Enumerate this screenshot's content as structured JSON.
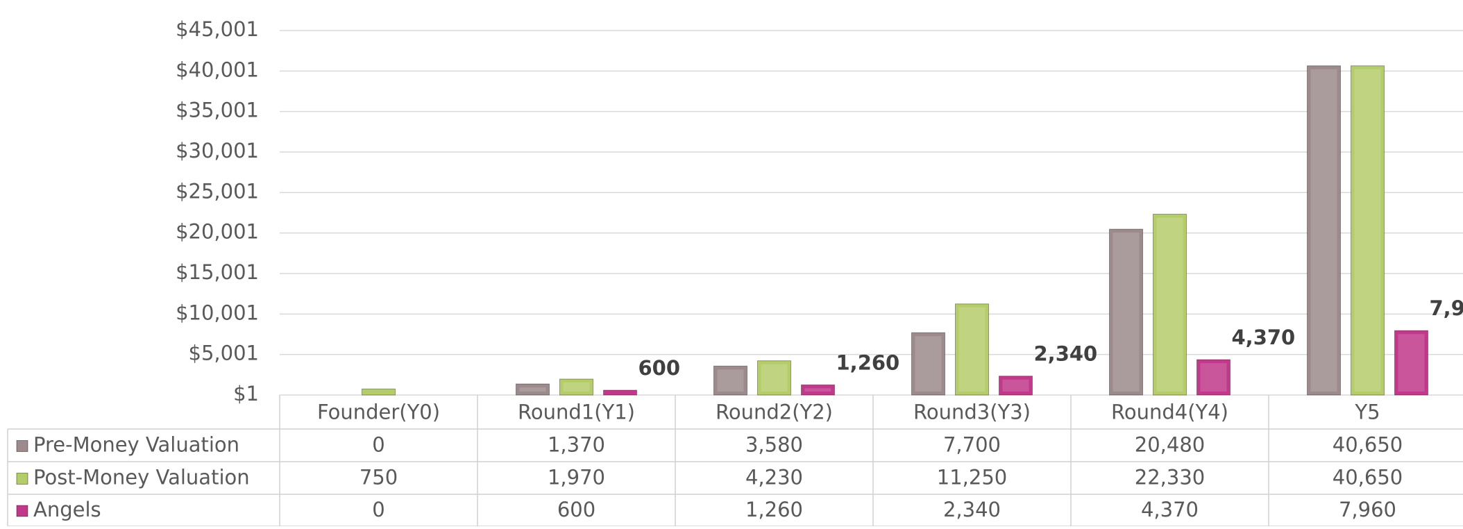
{
  "chart_data": {
    "type": "bar",
    "categories": [
      "Founder(Y0)",
      "Round1(Y1)",
      "Round2(Y2)",
      "Round3(Y3)",
      "Round4(Y4)",
      "Y5"
    ],
    "series": [
      {
        "name": "Pre-Money Valuation",
        "color": "#9c8a8c",
        "values": [
          0,
          1370,
          3580,
          7700,
          20480,
          40650
        ],
        "value_labels": [
          "0",
          "1,370",
          "3,580",
          "7,700",
          "20,480",
          "40,650"
        ],
        "data_labels": false
      },
      {
        "name": "Post-Money Valuation",
        "color": "#b5cc6a",
        "values": [
          750,
          1970,
          4230,
          11250,
          22330,
          40650
        ],
        "value_labels": [
          "750",
          "1,970",
          "4,230",
          "11,250",
          "22,330",
          "40,650"
        ],
        "data_labels": false
      },
      {
        "name": "Angels",
        "color": "#c0398a",
        "values": [
          0,
          600,
          1260,
          2340,
          4370,
          7960
        ],
        "value_labels": [
          "0",
          "600",
          "1,260",
          "2,340",
          "4,370",
          "7,960"
        ],
        "data_labels": true
      }
    ],
    "ylim": [
      1,
      45001
    ],
    "yticks": [
      {
        "value": 1,
        "label": "$1"
      },
      {
        "value": 5001,
        "label": "$5,001"
      },
      {
        "value": 10001,
        "label": "$10,001"
      },
      {
        "value": 15001,
        "label": "$15,001"
      },
      {
        "value": 20001,
        "label": "$20,001"
      },
      {
        "value": 25001,
        "label": "$25,001"
      },
      {
        "value": 30001,
        "label": "$30,001"
      },
      {
        "value": 35001,
        "label": "$35,001"
      },
      {
        "value": 40001,
        "label": "$40,001"
      },
      {
        "value": 45001,
        "label": "$45,001"
      }
    ],
    "grid": true,
    "data_table": true
  }
}
